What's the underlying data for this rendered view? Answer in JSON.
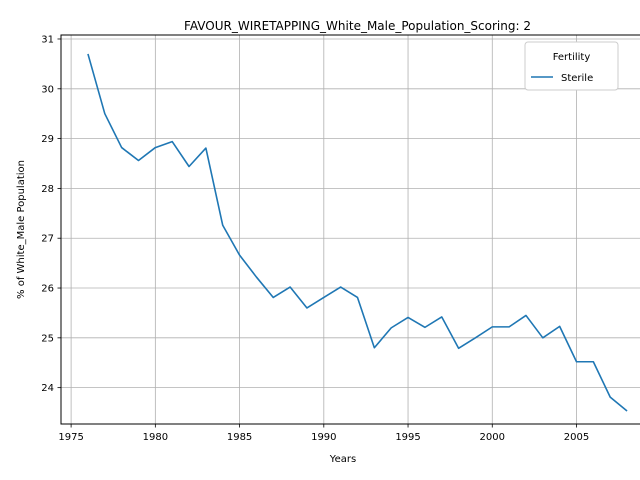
{
  "chart_data": {
    "type": "line",
    "title": "FAVOUR_WIRETAPPING_White_Male_Population_Scoring: 2",
    "xlabel": "Years",
    "ylabel": "% of White_Male Population",
    "xlim": [
      1974.4,
      2009.6
    ],
    "ylim": [
      23.27,
      31.08
    ],
    "xticks": [
      1975,
      1980,
      1985,
      1990,
      1995,
      2000,
      2005
    ],
    "yticks": [
      24,
      25,
      26,
      27,
      28,
      29,
      30,
      31
    ],
    "grid": true,
    "legend": {
      "title": "Fertility",
      "placement": "top-right"
    },
    "series": [
      {
        "name": "Sterile",
        "color": "#1f77b4",
        "x": [
          1976,
          1977,
          1978,
          1979,
          1980,
          1981,
          1982,
          1983,
          1984,
          1985,
          1986,
          1987,
          1988,
          1989,
          1990,
          1991,
          1992,
          1993,
          1994,
          1995,
          1996,
          1997,
          1998,
          1999,
          2000,
          2001,
          2002,
          2003,
          2004,
          2005,
          2006,
          2007,
          2008
        ],
        "y": [
          30.7,
          29.5,
          28.82,
          28.56,
          28.82,
          28.94,
          28.44,
          28.81,
          27.26,
          26.66,
          26.22,
          25.81,
          26.02,
          25.6,
          25.81,
          26.02,
          25.81,
          24.8,
          25.2,
          25.41,
          25.21,
          25.42,
          24.79,
          25.0,
          25.22,
          25.22,
          25.45,
          25.0,
          25.23,
          24.52,
          24.52,
          23.81,
          23.53
        ]
      }
    ]
  }
}
